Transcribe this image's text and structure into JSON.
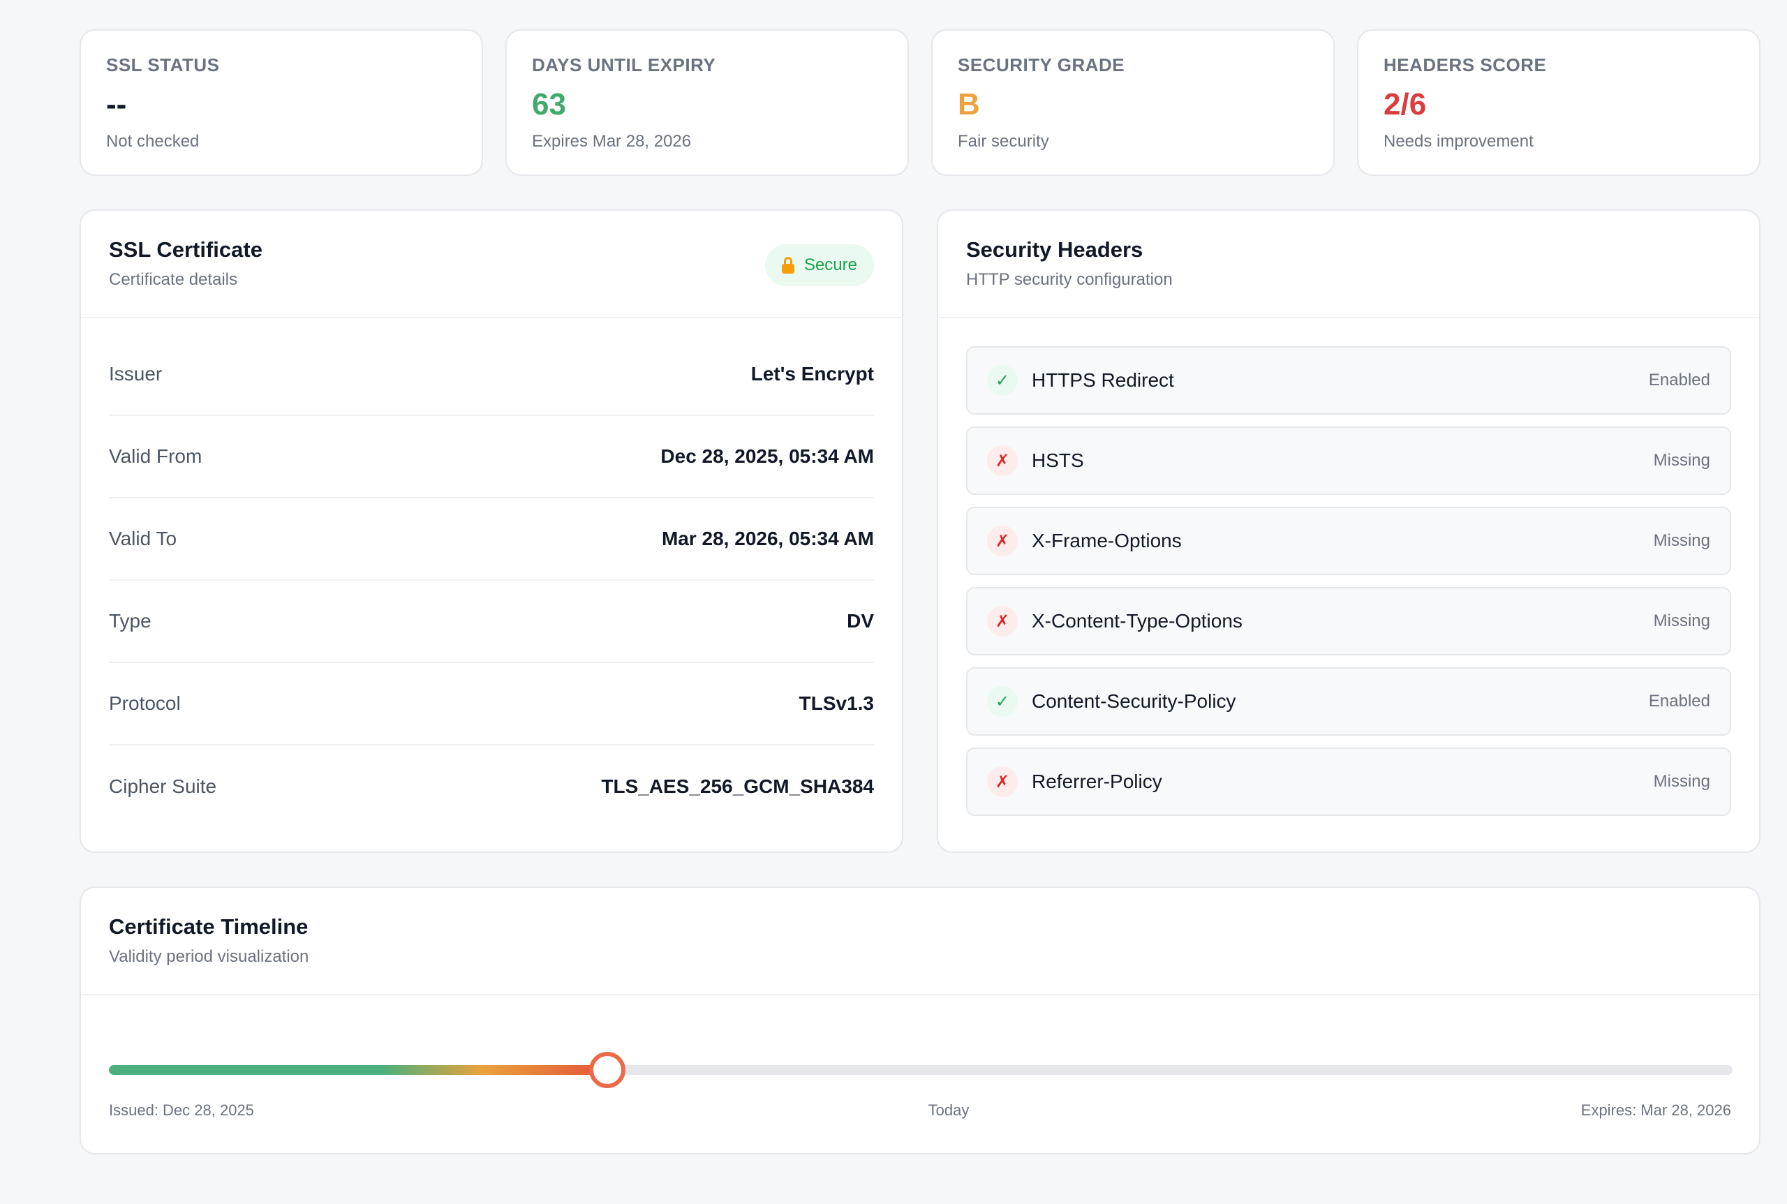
{
  "stats": [
    {
      "label": "SSL STATUS",
      "value": "--",
      "sub": "Not checked",
      "color": "#111827"
    },
    {
      "label": "DAYS UNTIL EXPIRY",
      "value": "63",
      "sub": "Expires Mar 28, 2026",
      "color": "#3faa6b"
    },
    {
      "label": "SECURITY GRADE",
      "value": "B",
      "sub": "Fair security",
      "color": "#eea23b"
    },
    {
      "label": "HEADERS SCORE",
      "value": "2/6",
      "sub": "Needs improvement",
      "color": "#dc3c3c"
    }
  ],
  "certificate": {
    "title": "SSL Certificate",
    "subtitle": "Certificate details",
    "badge": "Secure",
    "badge_icon": "lock-icon",
    "rows": [
      {
        "label": "Issuer",
        "value": "Let's Encrypt"
      },
      {
        "label": "Valid From",
        "value": "Dec 28, 2025, 05:34 AM"
      },
      {
        "label": "Valid To",
        "value": "Mar 28, 2026, 05:34 AM"
      },
      {
        "label": "Type",
        "value": "DV"
      },
      {
        "label": "Protocol",
        "value": "TLSv1.3"
      },
      {
        "label": "Cipher Suite",
        "value": "TLS_AES_256_GCM_SHA384"
      }
    ]
  },
  "headers": {
    "title": "Security Headers",
    "subtitle": "HTTP security configuration",
    "items": [
      {
        "name": "HTTPS Redirect",
        "status": "Enabled",
        "icon": "✓"
      },
      {
        "name": "HSTS",
        "status": "Missing",
        "icon": "✗"
      },
      {
        "name": "X-Frame-Options",
        "status": "Missing",
        "icon": "✗"
      },
      {
        "name": "X-Content-Type-Options",
        "status": "Missing",
        "icon": "✗"
      },
      {
        "name": "Content-Security-Policy",
        "status": "Enabled",
        "icon": "✓"
      },
      {
        "name": "Referrer-Policy",
        "status": "Missing",
        "icon": "✗"
      }
    ]
  },
  "timeline": {
    "title": "Certificate Timeline",
    "subtitle": "Validity period visualization",
    "progress_fraction": 0.307,
    "start_label": "Issued: Dec 28, 2025",
    "today_label": "Today",
    "end_label": "Expires: Mar 28, 2026"
  },
  "colors": {
    "success": "#22a05a",
    "danger": "#dc2626",
    "warning": "#f59e0b"
  }
}
